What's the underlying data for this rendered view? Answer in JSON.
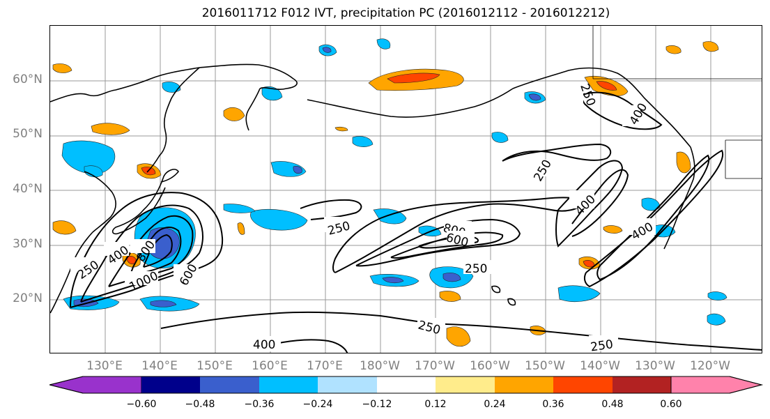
{
  "title": "2016011712 F012 IVT, precipitation PC (2016012112 - 2016012212)",
  "lat_labels": [
    "60°N",
    "50°N",
    "40°N",
    "30°N",
    "20°N"
  ],
  "lon_labels": [
    "130°E",
    "140°E",
    "150°E",
    "160°E",
    "170°E",
    "180°W",
    "170°W",
    "160°W",
    "150°W",
    "140°W",
    "130°W",
    "120°W"
  ],
  "colorbar": {
    "colors": [
      "#9932cc",
      "#00008b",
      "#3a5fcd",
      "#00bfff",
      "#b0e2ff",
      "#ffffff",
      "#ffec8b",
      "#ffa500",
      "#ff4500",
      "#b22222",
      "#ff82ab"
    ],
    "tick_labels": [
      "−0.60",
      "−0.48",
      "−0.36",
      "−0.24",
      "−0.12",
      "0.12",
      "0.24",
      "0.36",
      "0.48",
      "0.60"
    ]
  },
  "contour_labels": [
    "250",
    "400",
    "800",
    "1000",
    "600",
    "250",
    "800",
    "600",
    "250",
    "250",
    "400",
    "250",
    "400",
    "250",
    "400",
    "250",
    "400",
    "250"
  ]
}
